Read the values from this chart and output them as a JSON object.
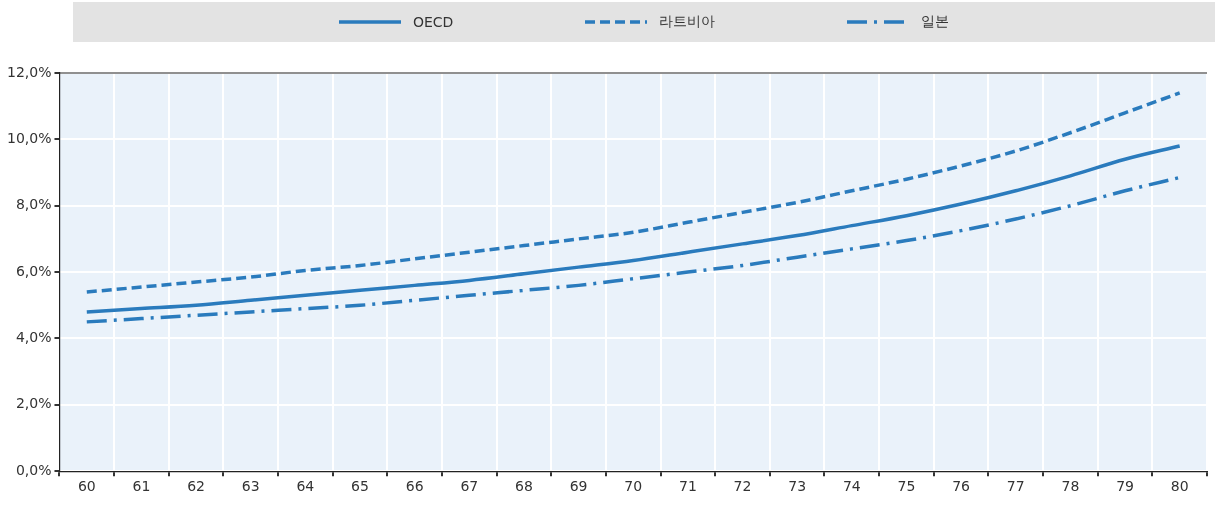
{
  "chart_data": {
    "type": "line",
    "categories": [
      "60",
      "61",
      "62",
      "63",
      "64",
      "65",
      "66",
      "67",
      "68",
      "69",
      "70",
      "71",
      "72",
      "73",
      "74",
      "75",
      "76",
      "77",
      "78",
      "79",
      "80"
    ],
    "series": [
      {
        "name": "OECD",
        "color": "#2a7bbd",
        "line_style": "solid",
        "values": [
          4.8,
          4.9,
          5.0,
          5.15,
          5.3,
          5.45,
          5.6,
          5.75,
          5.95,
          6.15,
          6.35,
          6.6,
          6.85,
          7.1,
          7.4,
          7.7,
          8.05,
          8.45,
          8.9,
          9.4,
          9.8
        ]
      },
      {
        "name": "라트비아",
        "color": "#2a7bbd",
        "line_style": "dashed",
        "values": [
          5.4,
          5.55,
          5.7,
          5.85,
          6.05,
          6.2,
          6.4,
          6.6,
          6.8,
          7.0,
          7.2,
          7.5,
          7.8,
          8.1,
          8.45,
          8.8,
          9.2,
          9.65,
          10.2,
          10.8,
          11.4
        ]
      },
      {
        "name": "일본",
        "color": "#2a7bbd",
        "line_style": "dashdot",
        "values": [
          4.5,
          4.6,
          4.7,
          4.8,
          4.9,
          5.0,
          5.15,
          5.3,
          5.45,
          5.6,
          5.8,
          6.0,
          6.2,
          6.45,
          6.7,
          6.95,
          7.25,
          7.6,
          8.0,
          8.45,
          8.85
        ]
      }
    ],
    "ylim": [
      0,
      12
    ],
    "yticks": [
      {
        "value": 0,
        "label": "0,0%"
      },
      {
        "value": 2,
        "label": "2,0%"
      },
      {
        "value": 4,
        "label": "4,0%"
      },
      {
        "value": 6,
        "label": "6,0%"
      },
      {
        "value": 8,
        "label": "8,0%"
      },
      {
        "value": 10,
        "label": "10,0%"
      },
      {
        "value": 12,
        "label": "12,0%"
      }
    ],
    "grid": true,
    "legend": "top",
    "marker": "none"
  }
}
